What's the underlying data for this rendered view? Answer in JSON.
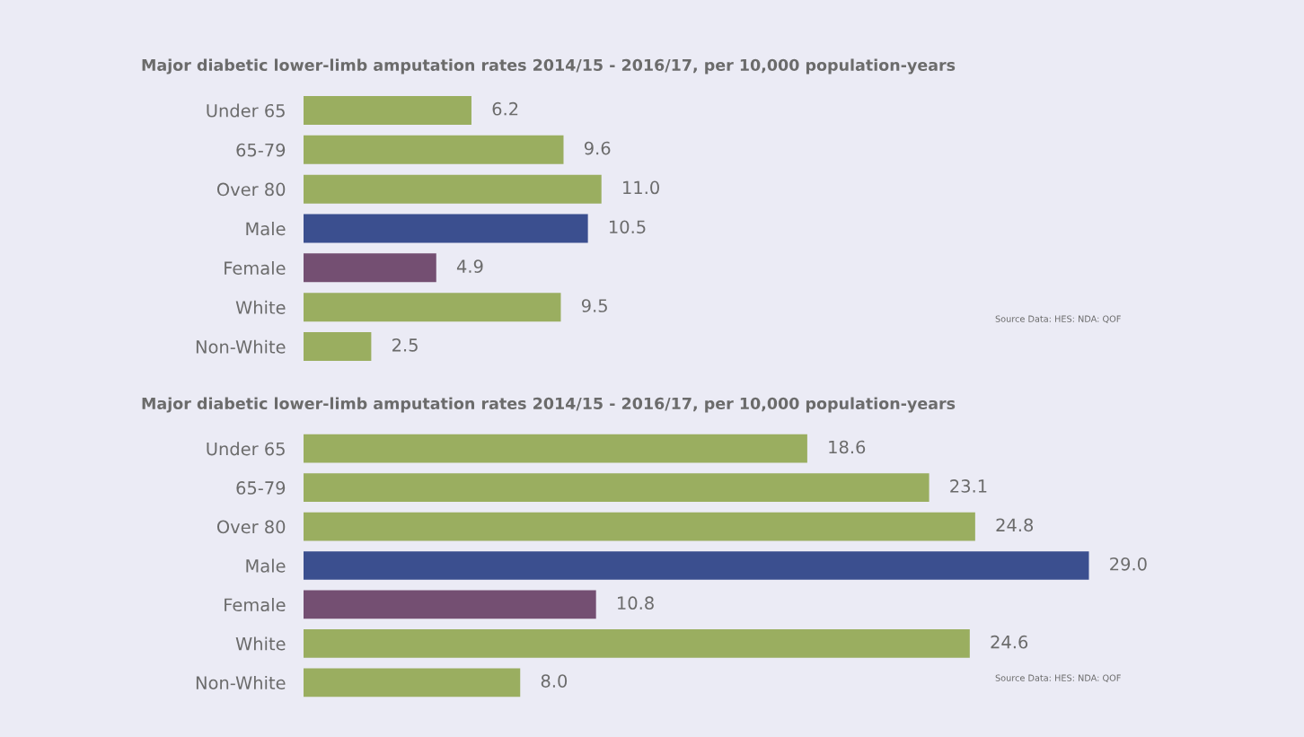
{
  "chart_data": [
    {
      "type": "bar",
      "orientation": "horizontal",
      "title": "Major diabetic lower-limb amputation rates 2014/15 - 2016/17, per 10,000 population-years",
      "categories": [
        "Under 65",
        "65-79",
        "Over 80",
        "Male",
        "Female",
        "White",
        "Non-White"
      ],
      "values": [
        6.2,
        9.6,
        11.0,
        10.5,
        4.9,
        9.5,
        2.5
      ],
      "colors": [
        "#9aae60",
        "#9aae60",
        "#9aae60",
        "#3b4f8f",
        "#744f72",
        "#9aae60",
        "#9aae60"
      ],
      "data_labels": true,
      "value_labels": [
        "6.2",
        "9.6",
        "11.0",
        "10.5",
        "4.9",
        "9.5",
        "2.5"
      ],
      "annotations": [
        "Source Data: HES: NDA: QOF"
      ]
    },
    {
      "type": "bar",
      "orientation": "horizontal",
      "title": "Major diabetic lower-limb amputation rates 2014/15 - 2016/17, per 10,000 population-years",
      "categories": [
        "Under 65",
        "65-79",
        "Over 80",
        "Male",
        "Female",
        "White",
        "Non-White"
      ],
      "values": [
        18.6,
        23.1,
        24.8,
        29.0,
        10.8,
        24.6,
        8.0
      ],
      "colors": [
        "#9aae60",
        "#9aae60",
        "#9aae60",
        "#3b4f8f",
        "#744f72",
        "#9aae60",
        "#9aae60"
      ],
      "data_labels": true,
      "value_labels": [
        "18.6",
        "23.1",
        "24.8",
        "29.0",
        "10.8",
        "24.6",
        "8.0"
      ],
      "annotations": [
        "Source Data: HES: NDA: QOF"
      ]
    }
  ]
}
